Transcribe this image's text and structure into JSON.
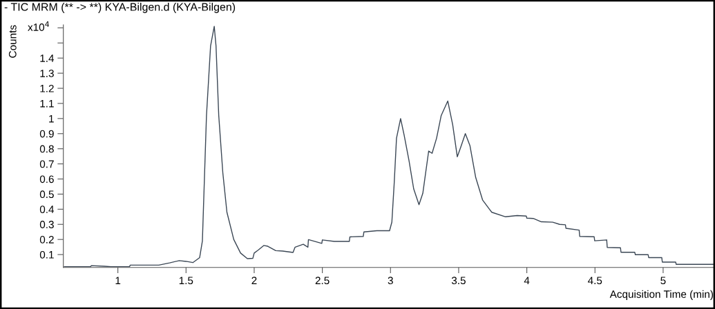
{
  "chart_data": {
    "type": "line",
    "title": "- TIC MRM (** -> **) KYA-Bilgen.d (KYA-Bilgen)",
    "xlabel": "Acquisition Time (min)",
    "ylabel": "Counts",
    "annotations": [
      "x10$^{4}$"
    ],
    "x": [
      0.607,
      0.8,
      0.805,
      0.9,
      0.95,
      1.086,
      1.09,
      1.3,
      1.38,
      1.45,
      1.5,
      1.55,
      1.6,
      1.62,
      1.65,
      1.68,
      1.707,
      1.72,
      1.74,
      1.77,
      1.8,
      1.85,
      1.9,
      1.95,
      1.99,
      2.0,
      2.03,
      2.07,
      2.1,
      2.158,
      2.209,
      2.285,
      2.3,
      2.36,
      2.394,
      2.398,
      2.496,
      2.5,
      2.588,
      2.698,
      2.702,
      2.8,
      2.805,
      2.9,
      2.993,
      3.01,
      3.027,
      3.044,
      3.074,
      3.1,
      3.136,
      3.17,
      3.209,
      3.237,
      3.28,
      3.305,
      3.338,
      3.372,
      3.42,
      3.456,
      3.49,
      3.515,
      3.549,
      3.583,
      3.625,
      3.676,
      3.726,
      3.743,
      3.844,
      3.929,
      3.996,
      4.0,
      4.047,
      4.106,
      4.19,
      4.24,
      4.283,
      4.287,
      4.384,
      4.388,
      4.494,
      4.498,
      4.586,
      4.59,
      4.687,
      4.691,
      4.792,
      4.796,
      4.89,
      4.894,
      4.99,
      4.994,
      5.092,
      5.096,
      5.37
    ],
    "series": [
      {
        "color": "#3a4654",
        "values": [
          0.02,
          0.02,
          0.027,
          0.023,
          0.02,
          0.02,
          0.03,
          0.03,
          0.045,
          0.06,
          0.055,
          0.047,
          0.08,
          0.19,
          1.02,
          1.48,
          1.61,
          1.48,
          1.02,
          0.64,
          0.38,
          0.2,
          0.11,
          0.073,
          0.075,
          0.11,
          0.13,
          0.16,
          0.155,
          0.126,
          0.123,
          0.114,
          0.149,
          0.168,
          0.149,
          0.199,
          0.174,
          0.197,
          0.187,
          0.187,
          0.217,
          0.22,
          0.25,
          0.258,
          0.258,
          0.315,
          0.57,
          0.87,
          1.0,
          0.89,
          0.72,
          0.535,
          0.43,
          0.505,
          0.785,
          0.77,
          0.87,
          1.02,
          1.116,
          0.96,
          0.747,
          0.81,
          0.9,
          0.82,
          0.61,
          0.46,
          0.4,
          0.38,
          0.35,
          0.358,
          0.355,
          0.341,
          0.339,
          0.317,
          0.314,
          0.3,
          0.297,
          0.274,
          0.262,
          0.22,
          0.218,
          0.191,
          0.197,
          0.147,
          0.145,
          0.115,
          0.115,
          0.099,
          0.099,
          0.08,
          0.08,
          0.05,
          0.05,
          0.035,
          0.035
        ]
      }
    ],
    "xlim": [
      0.6,
      5.37
    ],
    "ylim": [
      0.015,
      1.62
    ],
    "xticks": [
      1,
      1.5,
      2,
      2.5,
      3,
      3.5,
      4,
      4.5,
      5
    ],
    "yticks": [
      0.1,
      0.2,
      0.3,
      0.4,
      0.5,
      0.6,
      0.7,
      0.8,
      0.9,
      1,
      1.1,
      1.2,
      1.3,
      1.4,
      {
        "value": 1.5,
        "label": null
      },
      {
        "value": 1.6,
        "label": null
      }
    ],
    "grid": false,
    "legend": false,
    "marker": "none",
    "line_style": "solid"
  }
}
